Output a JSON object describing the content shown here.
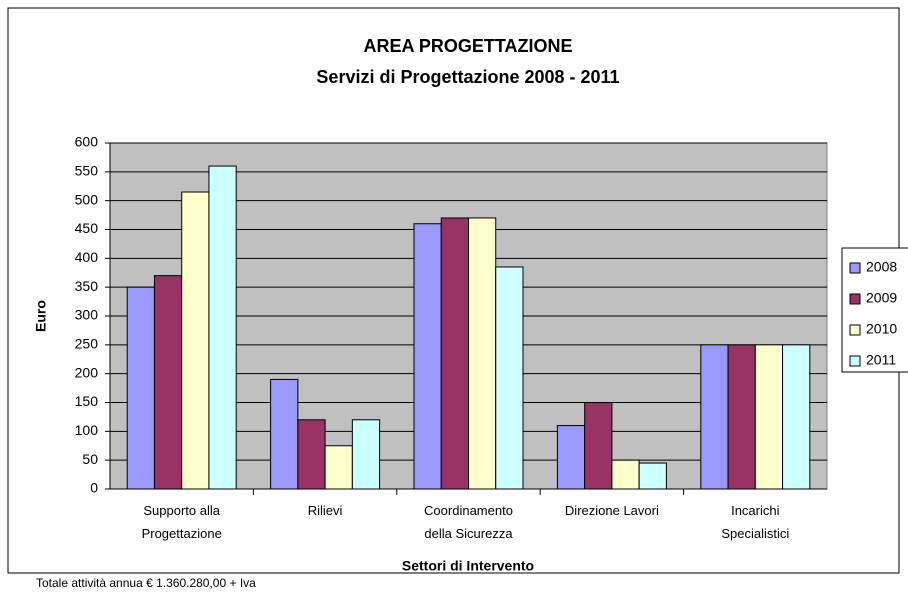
{
  "chart_data": {
    "type": "bar",
    "title": "AREA PROGETTAZIONE",
    "subtitle": "Servizi di Progettazione 2008 - 2011",
    "y_label": "Euro",
    "x_label": "Settori di Intervento",
    "annotation": "Totale attività annua € 1.360.280,00 + Iva",
    "categories": [
      "Supporto alla\nProgettazione",
      "Rilievi",
      "Coordinamento\ndella Sicurezza",
      "Direzione Lavori",
      "Incarichi\nSpecialistici"
    ],
    "series": [
      {
        "name": "2008",
        "color": "#9999ff",
        "values": [
          350,
          190,
          460,
          110,
          250
        ]
      },
      {
        "name": "2009",
        "color": "#993366",
        "values": [
          370,
          120,
          470,
          150,
          250
        ]
      },
      {
        "name": "2010",
        "color": "#ffffcc",
        "values": [
          515,
          75,
          470,
          50,
          250
        ]
      },
      {
        "name": "2011",
        "color": "#ccffff",
        "values": [
          560,
          120,
          385,
          45,
          250
        ]
      }
    ],
    "ylim": [
      0,
      600
    ],
    "yticks": [
      0,
      50,
      100,
      150,
      200,
      250,
      300,
      350,
      400,
      450,
      500,
      550,
      600
    ],
    "grid": true,
    "legend": "right"
  }
}
